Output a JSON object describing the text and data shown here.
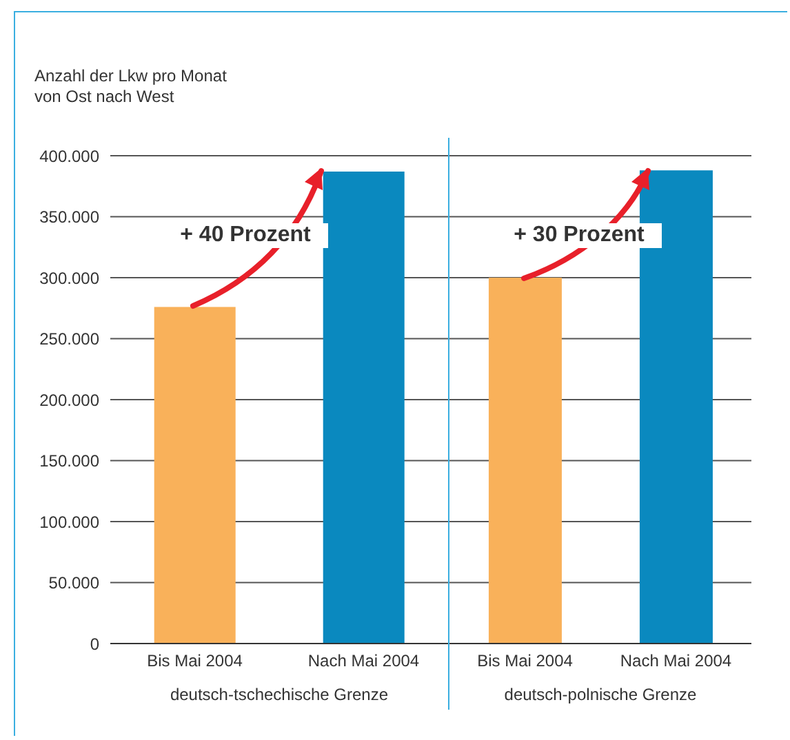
{
  "chart_data": [
    {
      "type": "bar",
      "ylabel": "Anzahl der Lkw pro Monat\nvon Ost nach West",
      "xlabel": "deutsch-tschechische Grenze",
      "categories": [
        "Bis Mai 2004",
        "Nach Mai 2004"
      ],
      "values": [
        276000,
        387000
      ],
      "colors": [
        "#f9b15a",
        "#0a89bf"
      ],
      "ylim": [
        0,
        400000
      ],
      "yticks": [
        {
          "value": 0,
          "label": "0"
        },
        {
          "value": 50000,
          "label": "50.000"
        },
        {
          "value": 100000,
          "label": "100.000"
        },
        {
          "value": 150000,
          "label": "150.000"
        },
        {
          "value": 200000,
          "label": "200.000"
        },
        {
          "value": 250000,
          "label": "250.000"
        },
        {
          "value": 300000,
          "label": "300.000"
        },
        {
          "value": 350000,
          "label": "350.000"
        },
        {
          "value": 400000,
          "label": "400.000"
        }
      ],
      "grid": "y",
      "annotations": [
        "+ 40 Prozent"
      ]
    },
    {
      "type": "bar",
      "xlabel": "deutsch-polnische Grenze",
      "categories": [
        "Bis Mai 2004",
        "Nach Mai 2004"
      ],
      "values": [
        300000,
        388000
      ],
      "colors": [
        "#f9b15a",
        "#0a89bf"
      ],
      "ylim": [
        0,
        400000
      ],
      "yticks": [
        {
          "value": 0,
          "label": null
        },
        {
          "value": 50000,
          "label": null
        },
        {
          "value": 100000,
          "label": null
        },
        {
          "value": 150000,
          "label": null
        },
        {
          "value": 200000,
          "label": null
        },
        {
          "value": 250000,
          "label": null
        },
        {
          "value": 300000,
          "label": null
        },
        {
          "value": 350000,
          "label": null
        },
        {
          "value": 400000,
          "label": null
        }
      ],
      "grid": "y",
      "tick_labels": "x",
      "annotations": [
        "+ 30 Prozent"
      ]
    }
  ]
}
